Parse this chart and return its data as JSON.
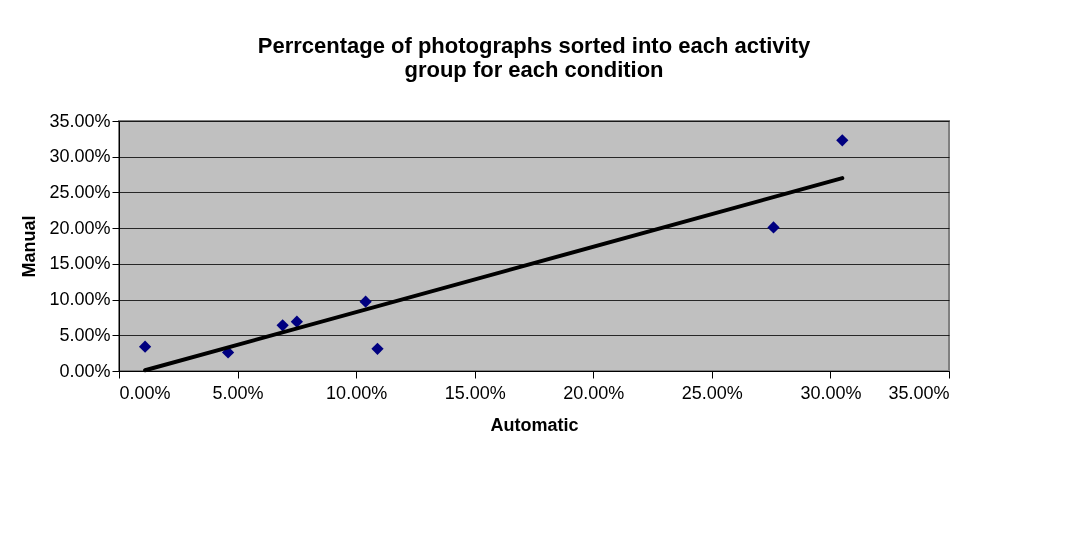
{
  "chart_data": {
    "type": "scatter",
    "title": [
      "Perrcentage of photographs sorted into each activity",
      "group for each condition"
    ],
    "xlabel": "Automatic",
    "ylabel": "Manual",
    "x": [
      1.1,
      4.6,
      6.9,
      7.5,
      10.4,
      10.9,
      27.6,
      30.5
    ],
    "series": [
      {
        "color": "#000080",
        "marker": "diamond",
        "values": [
          3.4,
          2.6,
          6.4,
          6.9,
          9.7,
          3.1,
          20.1,
          32.3
        ]
      },
      {
        "type": "line",
        "color": "#000000",
        "x": [
          1.1,
          30.5
        ],
        "values": [
          0.1,
          27.0
        ],
        "line_style": "solid"
      }
    ],
    "xlim": [
      0,
      35
    ],
    "ylim": [
      0,
      35
    ],
    "xticks": [
      {
        "value": 0,
        "label": "0.00%"
      },
      {
        "value": 5,
        "label": "5.00%"
      },
      {
        "value": 10,
        "label": "10.00%"
      },
      {
        "value": 15,
        "label": "15.00%"
      },
      {
        "value": 20,
        "label": "20.00%"
      },
      {
        "value": 25,
        "label": "25.00%"
      },
      {
        "value": 30,
        "label": "30.00%"
      },
      {
        "value": 35,
        "label": "35.00%"
      }
    ],
    "yticks": [
      {
        "value": 0,
        "label": "0.00%"
      },
      {
        "value": 5,
        "label": "5.00%"
      },
      {
        "value": 10,
        "label": "10.00%"
      },
      {
        "value": 15,
        "label": "15.00%"
      },
      {
        "value": 20,
        "label": "20.00%"
      },
      {
        "value": 25,
        "label": "25.00%"
      },
      {
        "value": 30,
        "label": "30.00%"
      },
      {
        "value": 35,
        "label": "35.00%"
      }
    ],
    "grid": "y"
  }
}
